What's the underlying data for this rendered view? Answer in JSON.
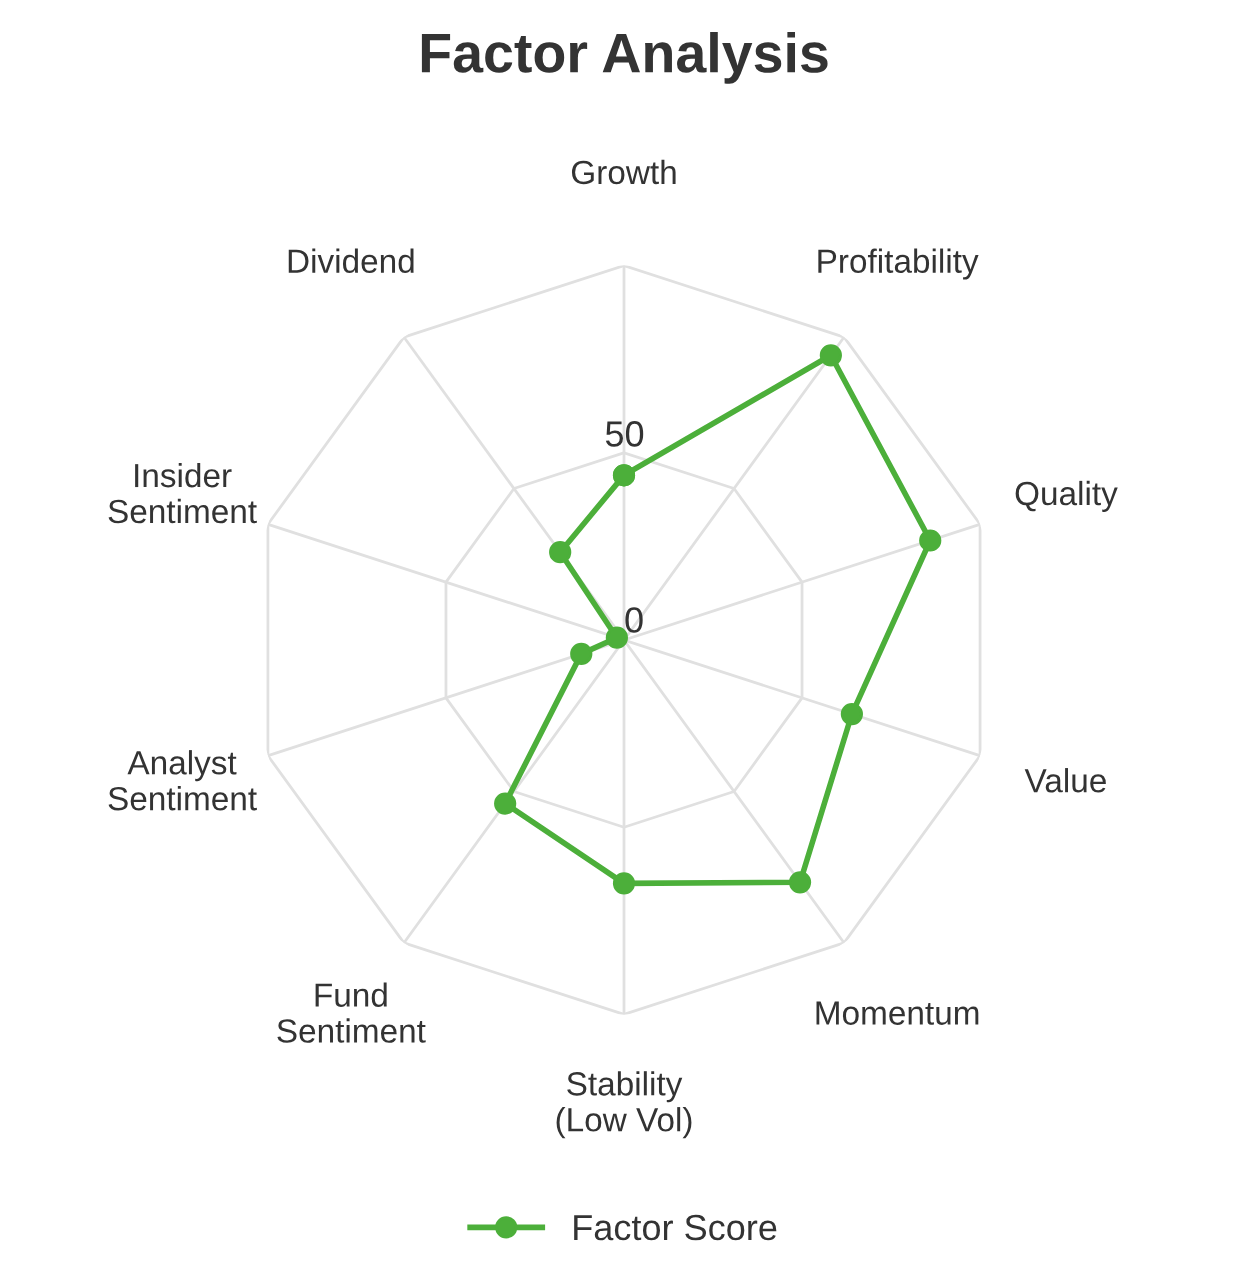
{
  "chart_data": {
    "type": "radar",
    "title": "Factor Analysis",
    "categories": [
      "Growth",
      "Profitability",
      "Quality",
      "Value",
      "Momentum",
      "Stability\n(Low Vol)",
      "Fund\nSentiment",
      "Analyst\nSentiment",
      "Insider\nSentiment",
      "Dividend"
    ],
    "series": [
      {
        "name": "Factor Score",
        "color": "#4caf3a",
        "values": [
          44,
          94,
          86,
          64,
          80,
          65,
          54,
          12,
          2,
          29
        ]
      }
    ],
    "ylim": [
      0,
      100
    ],
    "yticks": [
      0,
      50
    ],
    "grid": true,
    "legend": "bottom",
    "marker": "circle",
    "line_style": "solid"
  }
}
